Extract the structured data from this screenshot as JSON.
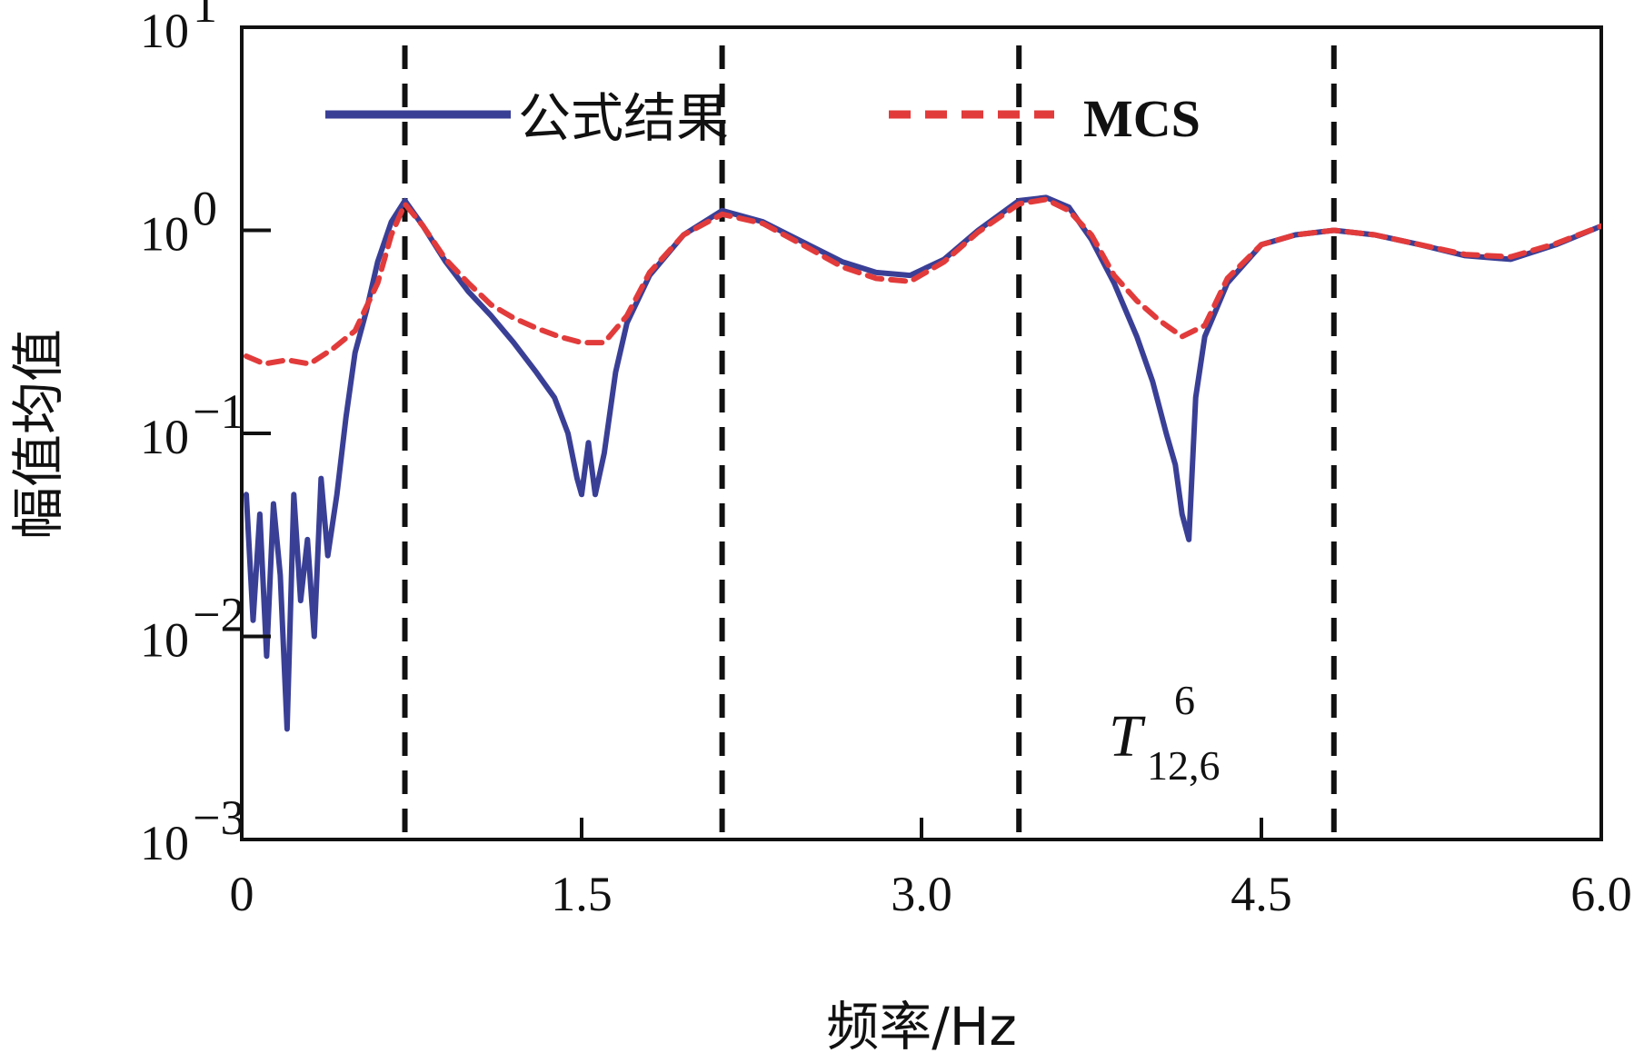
{
  "chart_data": {
    "type": "line",
    "xlabel": "频率/Hz",
    "ylabel": "幅值均值",
    "xlim": [
      0,
      6.0
    ],
    "ylim": [
      0.001,
      10
    ],
    "y_scale": "log",
    "x_ticks": [
      0,
      1.5,
      3.0,
      4.5,
      6.0
    ],
    "x_tick_labels": [
      "0",
      "1.5",
      "3.0",
      "4.5",
      "6.0"
    ],
    "y_ticks": [
      {
        "value": 10,
        "base": "10",
        "exp": "1"
      },
      {
        "value": 1,
        "base": "10",
        "exp": "0"
      },
      {
        "value": 0.1,
        "base": "10",
        "exp": "−1"
      },
      {
        "value": 0.01,
        "base": "10",
        "exp": "−2"
      },
      {
        "value": 0.001,
        "base": "10",
        "exp": "−3"
      }
    ],
    "vlines": [
      0.72,
      2.12,
      3.43,
      4.82
    ],
    "annotation": {
      "main": "T",
      "sup": "6",
      "sub": "12,6"
    },
    "legend_position": "top",
    "series": [
      {
        "name": "公式结果",
        "color": "#3a3f96",
        "style": "solid",
        "x": [
          0.02,
          0.05,
          0.08,
          0.11,
          0.14,
          0.17,
          0.2,
          0.23,
          0.26,
          0.29,
          0.32,
          0.35,
          0.38,
          0.42,
          0.46,
          0.5,
          0.55,
          0.6,
          0.66,
          0.72,
          0.8,
          0.9,
          1.0,
          1.1,
          1.2,
          1.3,
          1.38,
          1.44,
          1.48,
          1.5,
          1.53,
          1.56,
          1.6,
          1.65,
          1.7,
          1.8,
          1.95,
          2.12,
          2.3,
          2.5,
          2.65,
          2.8,
          2.95,
          3.1,
          3.25,
          3.43,
          3.55,
          3.65,
          3.75,
          3.85,
          3.95,
          4.02,
          4.08,
          4.12,
          4.15,
          4.18,
          4.21,
          4.25,
          4.35,
          4.5,
          4.65,
          4.82,
          5.0,
          5.2,
          5.4,
          5.6,
          5.8,
          6.0
        ],
        "y": [
          0.05,
          0.012,
          0.04,
          0.008,
          0.045,
          0.02,
          0.0035,
          0.05,
          0.015,
          0.03,
          0.01,
          0.06,
          0.025,
          0.05,
          0.12,
          0.25,
          0.4,
          0.7,
          1.1,
          1.4,
          1.05,
          0.7,
          0.5,
          0.38,
          0.28,
          0.2,
          0.15,
          0.1,
          0.06,
          0.05,
          0.09,
          0.05,
          0.08,
          0.2,
          0.35,
          0.6,
          0.95,
          1.25,
          1.1,
          0.85,
          0.7,
          0.62,
          0.6,
          0.72,
          1.0,
          1.4,
          1.45,
          1.3,
          0.9,
          0.55,
          0.3,
          0.18,
          0.1,
          0.07,
          0.04,
          0.03,
          0.15,
          0.3,
          0.55,
          0.85,
          0.95,
          1.0,
          0.95,
          0.85,
          0.75,
          0.72,
          0.85,
          1.05
        ]
      },
      {
        "name": "MCS",
        "color": "#e23b3b",
        "style": "dashed",
        "x": [
          0.02,
          0.1,
          0.2,
          0.3,
          0.4,
          0.5,
          0.6,
          0.66,
          0.72,
          0.8,
          0.9,
          1.0,
          1.1,
          1.2,
          1.3,
          1.4,
          1.5,
          1.6,
          1.7,
          1.8,
          1.95,
          2.12,
          2.3,
          2.5,
          2.65,
          2.8,
          2.95,
          3.1,
          3.25,
          3.43,
          3.55,
          3.65,
          3.75,
          3.85,
          3.95,
          4.05,
          4.15,
          4.25,
          4.35,
          4.5,
          4.65,
          4.82,
          5.0,
          5.2,
          5.4,
          5.6,
          5.8,
          6.0
        ],
        "y": [
          0.24,
          0.22,
          0.23,
          0.22,
          0.26,
          0.32,
          0.55,
          0.95,
          1.35,
          1.05,
          0.72,
          0.55,
          0.43,
          0.37,
          0.33,
          0.3,
          0.28,
          0.28,
          0.38,
          0.62,
          0.95,
          1.2,
          1.08,
          0.82,
          0.66,
          0.58,
          0.56,
          0.7,
          0.98,
          1.35,
          1.42,
          1.25,
          0.95,
          0.6,
          0.45,
          0.36,
          0.3,
          0.34,
          0.58,
          0.85,
          0.95,
          1.0,
          0.95,
          0.85,
          0.76,
          0.74,
          0.86,
          1.05
        ]
      }
    ]
  }
}
